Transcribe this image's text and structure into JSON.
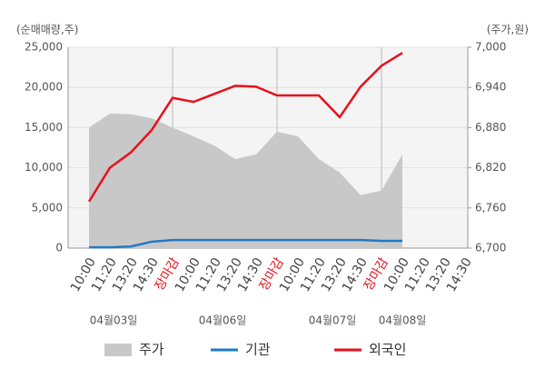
{
  "chart_data": {
    "type": "line",
    "y_axis_label": "(순매매량,주)",
    "y2_axis_label": "(주가,원)",
    "categories": [
      "10:00",
      "11:20",
      "13:20",
      "14:30",
      "장마감",
      "10:00",
      "11:20",
      "13:20",
      "14:30",
      "장마감",
      "10:00",
      "11:20",
      "13:20",
      "14:30",
      "장마감",
      "10:00",
      "11:20",
      "13:20",
      "14:30"
    ],
    "date_labels": [
      "04월03일",
      "04월06일",
      "04월07일",
      "04월08일"
    ],
    "series": [
      {
        "name": "주가",
        "type": "area",
        "axis": "y2",
        "color": "#c8c8c8",
        "values": [
          6880,
          6901,
          6900,
          6894,
          6880,
          6867,
          6853,
          6833,
          6840,
          6874,
          6867,
          6833,
          6813,
          6779,
          6786,
          6840,
          null,
          null,
          null
        ]
      },
      {
        "name": "기관",
        "type": "line",
        "color": "#1f7ac6",
        "values": [
          100,
          100,
          200,
          800,
          1000,
          1000,
          1000,
          1000,
          1000,
          1000,
          1000,
          1000,
          1000,
          1000,
          900,
          900,
          null,
          null,
          null
        ]
      },
      {
        "name": "외국인",
        "type": "line",
        "color": "#e8101a",
        "values": [
          5800,
          10000,
          11900,
          14700,
          18700,
          18200,
          19200,
          20200,
          20100,
          19000,
          19000,
          19000,
          16300,
          20100,
          22700,
          24300,
          null,
          null,
          null
        ]
      }
    ],
    "ylim": [
      0,
      25000
    ],
    "yticks": [
      0,
      {
        "value": 5000,
        "label": "5,000"
      },
      {
        "value": 10000,
        "label": "10,000"
      },
      {
        "value": 15000,
        "label": "15,000"
      },
      {
        "value": 20000,
        "label": "20,000"
      },
      {
        "value": 25000,
        "label": "25,000"
      }
    ],
    "y2lim": [
      6700,
      7000
    ],
    "y2ticks": [
      {
        "value": 6700,
        "label": "6,700"
      },
      {
        "value": 6760,
        "label": "6,760"
      },
      {
        "value": 6820,
        "label": "6,820"
      },
      {
        "value": 6880,
        "label": "6,880"
      },
      {
        "value": 6940,
        "label": "6,940"
      },
      {
        "value": 7000,
        "label": "7,000"
      }
    ],
    "grid": true
  }
}
